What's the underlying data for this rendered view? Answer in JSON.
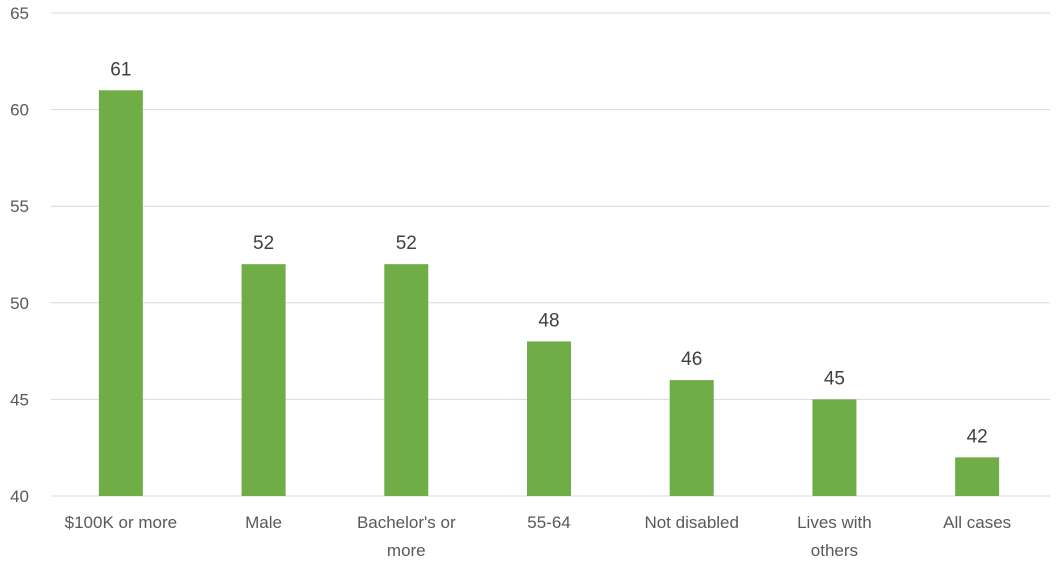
{
  "colors": {
    "bar": "#70ad47",
    "grid": "#d9d9d9",
    "text": "#595959"
  },
  "chart_data": {
    "type": "bar",
    "categories": [
      "$100K or more",
      "Male",
      "Bachelor's or more",
      "55-64",
      "Not disabled",
      "Lives with others",
      "All cases"
    ],
    "category_lines": [
      [
        "$100K or more"
      ],
      [
        "Male"
      ],
      [
        "Bachelor's or",
        "more"
      ],
      [
        "55-64"
      ],
      [
        "Not disabled"
      ],
      [
        "Lives with",
        "others"
      ],
      [
        "All cases"
      ]
    ],
    "values": [
      61,
      52,
      52,
      48,
      46,
      45,
      42
    ],
    "title": "",
    "xlabel": "",
    "ylabel": "",
    "ylim": [
      40,
      65
    ],
    "yticks": [
      40,
      45,
      50,
      55,
      60,
      65
    ],
    "grid": true,
    "legend": "none"
  }
}
